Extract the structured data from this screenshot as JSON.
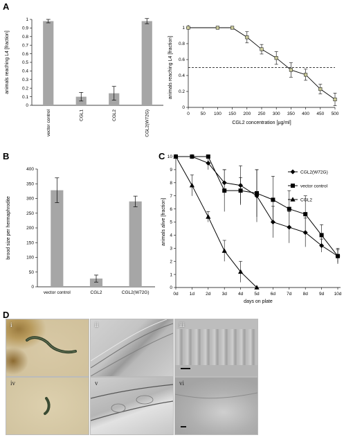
{
  "panels": {
    "A": "A",
    "B": "B",
    "C": "C",
    "D": "D"
  },
  "chart_data": [
    {
      "type": "bar",
      "panel": "A",
      "categories": [
        "vector control",
        "CGL1",
        "CGL2",
        "CGL2(W72G)"
      ],
      "values": [
        0.98,
        0.1,
        0.14,
        0.98
      ],
      "errors": [
        0.02,
        0.05,
        0.08,
        0.03
      ],
      "ylabel": "animals reaching L4 [fraction]",
      "ylim": [
        0,
        1
      ],
      "yticks": [
        "0",
        "0.1",
        "0.2",
        "0.3",
        "0.4",
        "0.5",
        "0.6",
        "0.7",
        "0.8",
        "0.9",
        "1"
      ],
      "color": "#a6a6a6"
    },
    {
      "type": "line",
      "panel": "A",
      "x": [
        0,
        100,
        150,
        200,
        250,
        300,
        350,
        400,
        450,
        500
      ],
      "y": [
        1.0,
        1.0,
        1.0,
        0.88,
        0.73,
        0.62,
        0.47,
        0.41,
        0.23,
        0.1
      ],
      "errors": [
        0,
        0,
        0,
        0.07,
        0.06,
        0.08,
        0.09,
        0.07,
        0.06,
        0.08
      ],
      "reference_line": 0.5,
      "xlabel": "CGL2 concentration [µg/ml]",
      "ylabel": "animals reaching L4 [fraction]",
      "xlim": [
        0,
        500
      ],
      "ylim": [
        0,
        1
      ],
      "xticks": [
        "0",
        "50",
        "100",
        "150",
        "200",
        "250",
        "300",
        "350",
        "400",
        "450",
        "500"
      ],
      "yticks": [
        "0",
        "0.2",
        "0.4",
        "0.6",
        "0.8",
        "1"
      ],
      "marker_fill": "#c8c89a"
    },
    {
      "type": "bar",
      "panel": "B",
      "categories": [
        "vector control",
        "CGL2",
        "CGL2(W72G)"
      ],
      "values": [
        328,
        28,
        290
      ],
      "errors": [
        42,
        12,
        18
      ],
      "ylabel": "brood size per hermaphrodite",
      "ylim": [
        0,
        400
      ],
      "yticks": [
        "0",
        "50",
        "100",
        "150",
        "200",
        "250",
        "300",
        "350",
        "400"
      ],
      "color": "#a6a6a6"
    },
    {
      "type": "line",
      "panel": "C",
      "categories": [
        "0d",
        "1d",
        "2d",
        "3d",
        "4d",
        "5d",
        "6d",
        "7d",
        "8d",
        "9d",
        "10d"
      ],
      "series": [
        {
          "name": "CGL2(W72G)",
          "marker": "diamond",
          "values": [
            10,
            10,
            9.5,
            8.0,
            7.8,
            7.0,
            5.0,
            4.6,
            4.2,
            3.2,
            2.4
          ],
          "errors": [
            0,
            0,
            0.5,
            1.0,
            1.5,
            2.0,
            1.2,
            1.2,
            1.1,
            0.5,
            0.5
          ]
        },
        {
          "name": "vector control",
          "marker": "square",
          "values": [
            10,
            10,
            10,
            7.4,
            7.4,
            7.2,
            6.7,
            6.0,
            5.6,
            4.0,
            2.4
          ],
          "errors": [
            0,
            0,
            0,
            1.6,
            1.0,
            1.8,
            1.8,
            1.4,
            1.4,
            0.8,
            0.6
          ]
        },
        {
          "name": "CGL2",
          "marker": "triangle",
          "values": [
            10,
            7.8,
            5.4,
            2.8,
            1.2,
            0,
            null,
            null,
            null,
            null,
            null
          ],
          "errors": [
            0,
            0.8,
            0.4,
            0.8,
            0.8,
            0,
            null,
            null,
            null,
            null,
            null
          ]
        }
      ],
      "xlabel": "days on plate",
      "ylabel": "animals alive [fraction]",
      "ylim": [
        0,
        10
      ],
      "yticks": [
        "0",
        "1",
        "2",
        "3",
        "4",
        "5",
        "6",
        "7",
        "8",
        "9",
        "10"
      ]
    }
  ],
  "micrographs": {
    "labels": [
      "i",
      "ii",
      "iii",
      "iv",
      "v",
      "vi"
    ]
  }
}
